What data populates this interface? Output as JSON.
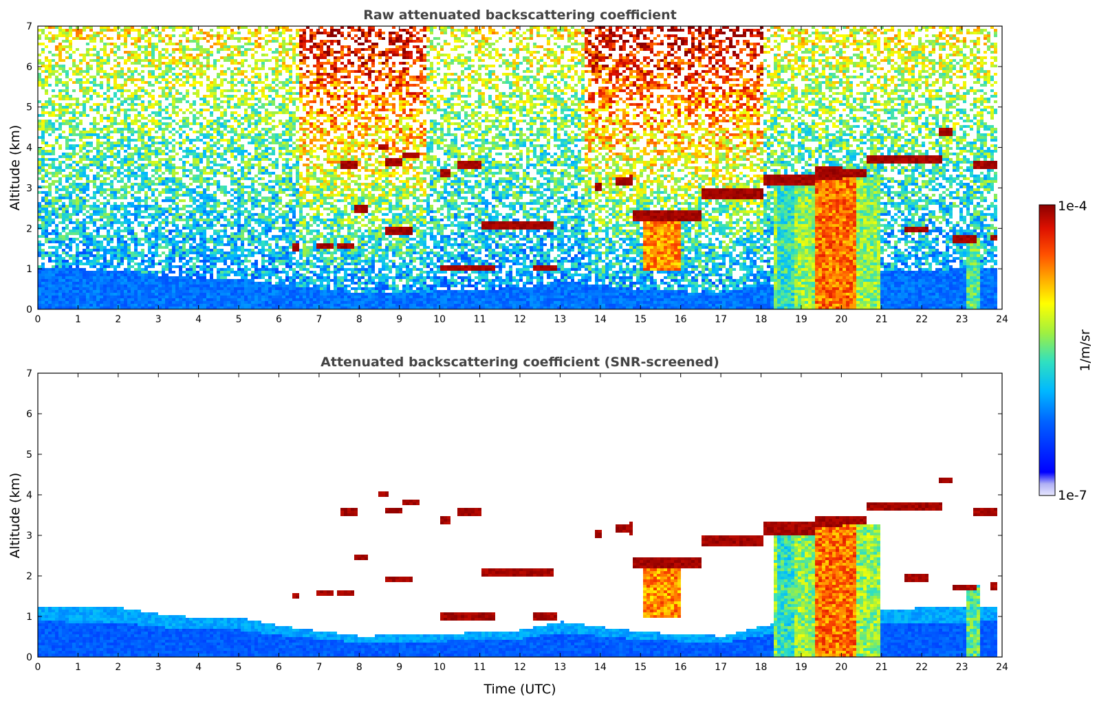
{
  "chart_data": [
    {
      "type": "heatmap",
      "title": "Raw attenuated backscattering coefficient",
      "xlabel": "",
      "ylabel": "Altitude (km)",
      "xlim": [
        0,
        24
      ],
      "ylim": [
        0,
        7
      ],
      "xticks": [
        "0",
        "1",
        "2",
        "3",
        "4",
        "5",
        "6",
        "7",
        "8",
        "9",
        "10",
        "11",
        "12",
        "13",
        "14",
        "15",
        "16",
        "17",
        "18",
        "19",
        "20",
        "21",
        "22",
        "23",
        "24"
      ],
      "yticks": [
        "0",
        "1",
        "2",
        "3",
        "4",
        "5",
        "6",
        "7"
      ],
      "colorbar": {
        "label": "1/m/sr",
        "min_label": "1e-7",
        "max_label": "1e-4",
        "scale": "log"
      },
      "cloud_layers": [
        {
          "t": [
            6.3,
            6.5
          ],
          "alt": 1.55
        },
        {
          "t": [
            6.9,
            7.3
          ],
          "alt": 1.6
        },
        {
          "t": [
            7.4,
            7.8
          ],
          "alt": 1.6
        },
        {
          "t": [
            7.5,
            7.9
          ],
          "alt": 3.6
        },
        {
          "t": [
            7.8,
            8.2
          ],
          "alt": 2.5
        },
        {
          "t": [
            8.4,
            8.7
          ],
          "alt": 4.05
        },
        {
          "t": [
            8.6,
            9.0
          ],
          "alt": 3.65
        },
        {
          "t": [
            9.0,
            9.5
          ],
          "alt": 3.85
        },
        {
          "t": [
            8.6,
            9.3
          ],
          "alt": 1.95
        },
        {
          "t": [
            10.0,
            10.2
          ],
          "alt": 3.4
        },
        {
          "t": [
            10.4,
            11.0
          ],
          "alt": 3.6
        },
        {
          "t": [
            10.0,
            11.3
          ],
          "alt": 1.05
        },
        {
          "t": [
            11.0,
            12.8
          ],
          "alt": 2.1
        },
        {
          "t": [
            12.3,
            12.9
          ],
          "alt": 1.05
        },
        {
          "t": [
            13.8,
            14.0
          ],
          "alt": 3.05
        },
        {
          "t": [
            14.3,
            14.8
          ],
          "alt": 3.2
        },
        {
          "t": [
            14.8,
            16.5
          ],
          "alt": 2.35
        },
        {
          "t": [
            16.5,
            18.0
          ],
          "alt": 2.9
        },
        {
          "t": [
            18.0,
            19.3
          ],
          "alt": 3.2
        },
        {
          "t": [
            19.3,
            20.6
          ],
          "alt": 3.4
        },
        {
          "t": [
            20.6,
            22.5
          ],
          "alt": 3.75
        },
        {
          "t": [
            22.4,
            22.7
          ],
          "alt": 4.4
        },
        {
          "t": [
            21.5,
            22.1
          ],
          "alt": 2.0
        },
        {
          "t": [
            22.7,
            23.3
          ],
          "alt": 1.75
        },
        {
          "t": [
            23.2,
            23.8
          ],
          "alt": 3.6
        },
        {
          "t": [
            23.7,
            23.8
          ],
          "alt": 1.8
        }
      ]
    },
    {
      "type": "heatmap",
      "title": "Attenuated backscattering coefficient (SNR-screened)",
      "xlabel": "Time (UTC)",
      "ylabel": "Altitude (km)",
      "xlim": [
        0,
        24
      ],
      "ylim": [
        0,
        7
      ],
      "xticks": [
        "0",
        "1",
        "2",
        "3",
        "4",
        "5",
        "6",
        "7",
        "8",
        "9",
        "10",
        "11",
        "12",
        "13",
        "14",
        "15",
        "16",
        "17",
        "18",
        "19",
        "20",
        "21",
        "22",
        "23",
        "24"
      ],
      "yticks": [
        "0",
        "1",
        "2",
        "3",
        "4",
        "5",
        "6",
        "7"
      ],
      "boundary_layer_top_km": [
        {
          "t": 0,
          "alt": 1.3
        },
        {
          "t": 2,
          "alt": 1.25
        },
        {
          "t": 3,
          "alt": 1.1
        },
        {
          "t": 4,
          "alt": 1.0
        },
        {
          "t": 5,
          "alt": 1.0
        },
        {
          "t": 6,
          "alt": 0.8
        },
        {
          "t": 8,
          "alt": 0.55
        },
        {
          "t": 10,
          "alt": 0.6
        },
        {
          "t": 12,
          "alt": 0.7
        },
        {
          "t": 13,
          "alt": 0.9
        },
        {
          "t": 15,
          "alt": 0.65
        },
        {
          "t": 17,
          "alt": 0.55
        },
        {
          "t": 18,
          "alt": 0.8
        },
        {
          "t": 21,
          "alt": 1.2
        },
        {
          "t": 22,
          "alt": 1.25
        },
        {
          "t": 23.8,
          "alt": 1.3
        }
      ]
    }
  ]
}
